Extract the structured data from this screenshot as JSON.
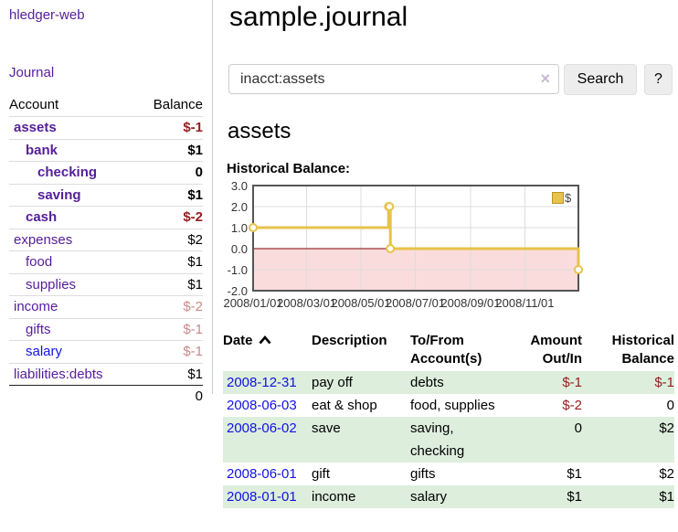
{
  "colors": {
    "purple": "#561d9b",
    "blue": "#1212e6",
    "negative": "#951d1d",
    "negative_dim": "#c98a8a",
    "row_green": "#ddeedd",
    "gold": "#e8c24a",
    "pink_region": "#fadcdc",
    "zero_line": "#7e0000"
  },
  "sidebar": {
    "brand": "hledger-web",
    "journal_label": "Journal",
    "accounts": {
      "col_account": "Account",
      "col_balance": "Balance",
      "total": "0",
      "rows": [
        {
          "name": "assets",
          "balance": "$-1",
          "depth": 1,
          "bold": true
        },
        {
          "name": "bank",
          "balance": "$1",
          "depth": 2,
          "bold": true
        },
        {
          "name": "checking",
          "balance": "0",
          "depth": 3,
          "bold": true
        },
        {
          "name": "saving",
          "balance": "$1",
          "depth": 3,
          "bold": true
        },
        {
          "name": "cash",
          "balance": "$-2",
          "depth": 2,
          "bold": true
        },
        {
          "name": "expenses",
          "balance": "$2",
          "depth": 1
        },
        {
          "name": "food",
          "balance": "$1",
          "depth": 2
        },
        {
          "name": "supplies",
          "balance": "$1",
          "depth": 2
        },
        {
          "name": "income",
          "balance": "$-2",
          "depth": 1,
          "dim": true
        },
        {
          "name": "gifts",
          "balance": "$-1",
          "depth": 2,
          "dim": true
        },
        {
          "name": "salary",
          "balance": "$-1",
          "depth": 2,
          "dim": true,
          "link_blue": true
        },
        {
          "name": "liabilities:debts",
          "balance": "$1",
          "depth": 1
        }
      ]
    }
  },
  "main": {
    "title": "sample.journal",
    "search": {
      "value": "inacct:assets",
      "clear_icon": "×",
      "button_label": "Search",
      "help_label": "?"
    },
    "account_heading": "assets",
    "chart_label": "Historical Balance:"
  },
  "chart_data": {
    "type": "line",
    "step": true,
    "title": "Historical Balance:",
    "series": [
      {
        "name": "$",
        "color": "#e8c24a",
        "points": [
          [
            "2008-01-01",
            1
          ],
          [
            "2008-06-01",
            2
          ],
          [
            "2008-06-02",
            2
          ],
          [
            "2008-06-03",
            0
          ],
          [
            "2008-12-31",
            -1
          ]
        ]
      }
    ],
    "x_ticks": [
      "2008/01/01",
      "2008/03/01",
      "2008/05/01",
      "2008/07/01",
      "2008/09/01",
      "2008/11/01"
    ],
    "x_range": [
      "2008-01-01",
      "2008-12-31"
    ],
    "y_ticks": [
      "3.0",
      "2.0",
      "1.0",
      "0.0",
      "-1.0",
      "-2.0"
    ],
    "ylim": [
      -2,
      3
    ],
    "grid": true,
    "negative_region": true,
    "legend": {
      "label": "$",
      "position": "top-right"
    }
  },
  "register": {
    "sort": "ascending",
    "headers": [
      {
        "l1": "Date",
        "l2": "",
        "sort_icon": true
      },
      {
        "l1": "Description",
        "l2": ""
      },
      {
        "l1": "To/From",
        "l2": "Account(s)"
      },
      {
        "l1": "Amount",
        "l2": "Out/In"
      },
      {
        "l1": "Historical",
        "l2": "Balance"
      }
    ],
    "rows": [
      {
        "date": "2008-12-31",
        "description": "pay off",
        "accounts": "debts",
        "amount": "$-1",
        "balance": "$-1"
      },
      {
        "date": "2008-06-03",
        "description": "eat & shop",
        "accounts": "food, supplies",
        "amount": "$-2",
        "balance": "0"
      },
      {
        "date": "2008-06-02",
        "description": "save",
        "accounts": "saving, checking",
        "amount": "0",
        "balance": "$2"
      },
      {
        "date": "2008-06-01",
        "description": "gift",
        "accounts": "gifts",
        "amount": "$1",
        "balance": "$2"
      },
      {
        "date": "2008-01-01",
        "description": "income",
        "accounts": "salary",
        "amount": "$1",
        "balance": "$1"
      }
    ]
  }
}
